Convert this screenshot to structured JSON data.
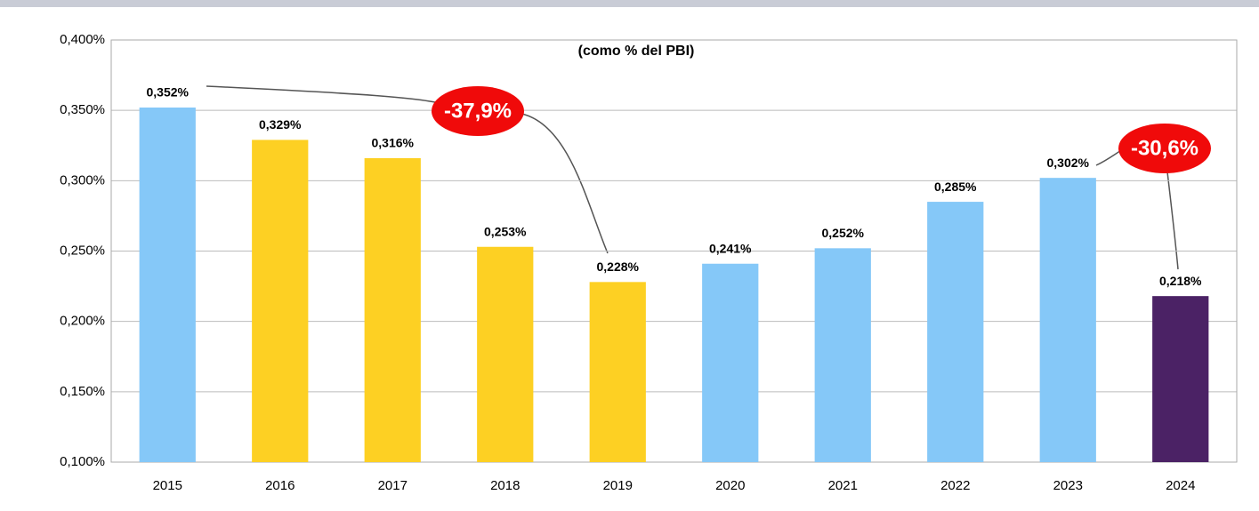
{
  "chart_data": {
    "type": "bar",
    "title": "(como % del PBI)",
    "categories": [
      "2015",
      "2016",
      "2017",
      "2018",
      "2019",
      "2020",
      "2021",
      "2022",
      "2023",
      "2024"
    ],
    "values": [
      0.352,
      0.329,
      0.316,
      0.253,
      0.228,
      0.241,
      0.252,
      0.285,
      0.302,
      0.218
    ],
    "value_labels": [
      "0,352%",
      "0,329%",
      "0,316%",
      "0,253%",
      "0,228%",
      "0,241%",
      "0,252%",
      "0,285%",
      "0,302%",
      "0,218%"
    ],
    "colors": [
      "#85c8f8",
      "#fdd023",
      "#fdd023",
      "#fdd023",
      "#fdd023",
      "#85c8f8",
      "#85c8f8",
      "#85c8f8",
      "#85c8f8",
      "#4b2265"
    ],
    "ylim": [
      0.1,
      0.4
    ],
    "yticks": [
      {
        "value": 0.1,
        "label": "0,100%"
      },
      {
        "value": 0.15,
        "label": "0,150%"
      },
      {
        "value": 0.2,
        "label": "0,200%"
      },
      {
        "value": 0.25,
        "label": "0,250%"
      },
      {
        "value": 0.3,
        "label": "0,300%"
      },
      {
        "value": 0.35,
        "label": "0,350%"
      },
      {
        "value": 0.4,
        "label": "0,400%"
      }
    ],
    "grid": true,
    "annotations": [
      {
        "text": "-37,9%"
      },
      {
        "text": "-30,6%"
      }
    ]
  }
}
